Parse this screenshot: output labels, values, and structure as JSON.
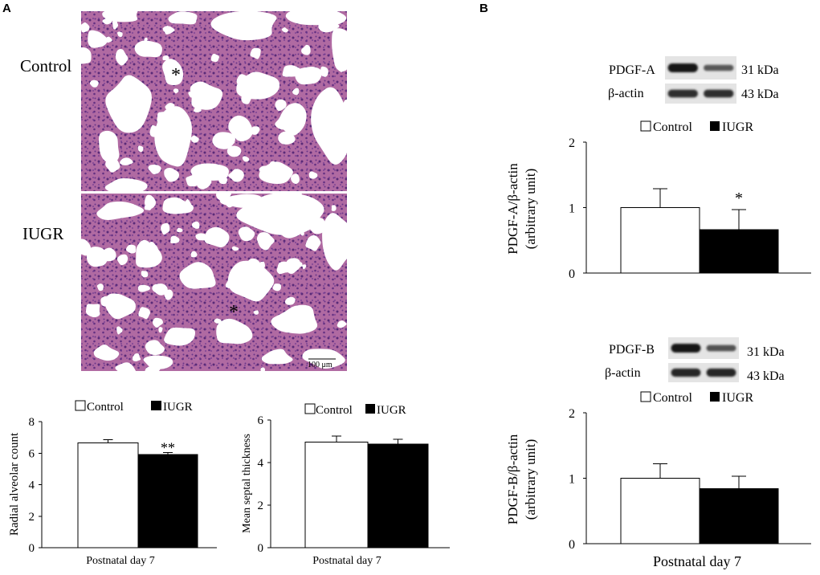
{
  "panels": {
    "a": "A",
    "b": "B"
  },
  "colors": {
    "tissue": "#b06aa2",
    "alveolar_space": "#ffffff",
    "blot_background": "#e4e4e4"
  },
  "histology": {
    "control": {
      "label": "Control",
      "marker": "*"
    },
    "iugr": {
      "label": "IUGR",
      "marker": "*",
      "scale_bar": "100 μm"
    }
  },
  "blots": [
    {
      "target": "PDGF-A",
      "target_size": "31 kDa",
      "loading": "β-actin",
      "loading_size": "43 kDa",
      "target_bands": [
        1.0,
        0.55
      ],
      "loading_bands": [
        0.85,
        0.85
      ]
    },
    {
      "target": "PDGF-B",
      "target_size": "31 kDa",
      "loading": "β-actin",
      "loading_size": "43 kDa",
      "target_bands": [
        1.0,
        0.6
      ],
      "loading_bands": [
        0.9,
        0.9
      ]
    }
  ],
  "chart_data": [
    {
      "type": "bar",
      "categories": [
        "Postnatal day 7"
      ],
      "series": [
        {
          "name": "Control",
          "values": [
            6.65
          ],
          "error": [
            0.2
          ],
          "color": "#ffffff"
        },
        {
          "name": "IUGR",
          "values": [
            5.9
          ],
          "error": [
            0.15
          ],
          "color": "#000000",
          "significance": [
            "**"
          ]
        }
      ],
      "ylabel": "Radial alveolar count",
      "ylim": [
        0,
        8
      ],
      "yticks": [
        0,
        2,
        4,
        6,
        8
      ],
      "grid": false,
      "legend": "top"
    },
    {
      "type": "bar",
      "categories": [
        "Postnatal day 7"
      ],
      "series": [
        {
          "name": "Control",
          "values": [
            4.97
          ],
          "error": [
            0.27
          ],
          "color": "#ffffff"
        },
        {
          "name": "IUGR",
          "values": [
            4.86
          ],
          "error": [
            0.24
          ],
          "color": "#000000"
        }
      ],
      "ylabel": "Mean septal thickness",
      "ylim": [
        0,
        6
      ],
      "yticks": [
        0,
        2,
        4,
        6
      ],
      "grid": false,
      "legend": "top"
    },
    {
      "type": "bar",
      "series": [
        {
          "name": "Control",
          "values": [
            1.0
          ],
          "error": [
            0.29
          ],
          "color": "#ffffff"
        },
        {
          "name": "IUGR",
          "values": [
            0.66
          ],
          "error": [
            0.31
          ],
          "color": "#000000",
          "significance": [
            "*"
          ]
        }
      ],
      "ylabel": [
        "PDGF-A/β-actin",
        "(arbitrary unit)"
      ],
      "ylim": [
        0,
        2
      ],
      "yticks": [
        0,
        1,
        2
      ],
      "grid": false,
      "legend": "top"
    },
    {
      "type": "bar",
      "categories": [
        "Postnatal day 7"
      ],
      "series": [
        {
          "name": "Control",
          "values": [
            1.0
          ],
          "error": [
            0.22
          ],
          "color": "#ffffff"
        },
        {
          "name": "IUGR",
          "values": [
            0.84
          ],
          "error": [
            0.19
          ],
          "color": "#000000"
        }
      ],
      "ylabel": [
        "PDGF-B/β-actin",
        "(arbitrary unit)"
      ],
      "ylim": [
        0,
        2
      ],
      "yticks": [
        0,
        1,
        2
      ],
      "grid": false,
      "legend": "top"
    }
  ]
}
